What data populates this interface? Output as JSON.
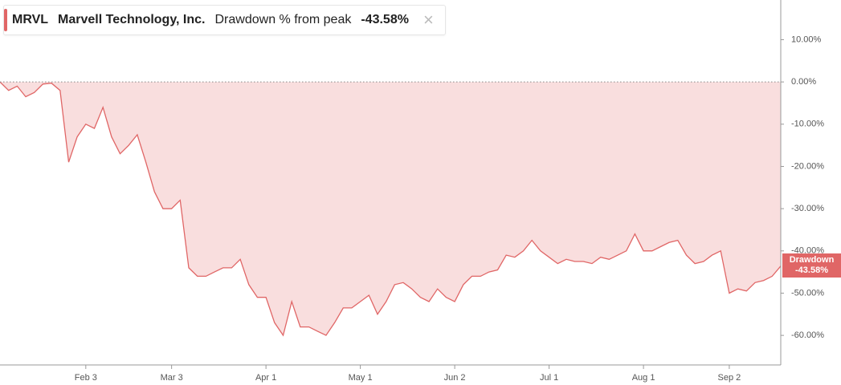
{
  "header": {
    "ticker": "MRVL",
    "company": "Marvell Technology, Inc.",
    "metric": "Drawdown % from peak",
    "current": "-43.58%"
  },
  "chart_data": {
    "type": "area",
    "categories": [
      null,
      null,
      null,
      null,
      null,
      null,
      null,
      null,
      null,
      null,
      "Feb 3",
      null,
      null,
      null,
      null,
      null,
      null,
      null,
      null,
      null,
      "Mar 3",
      null,
      null,
      null,
      null,
      null,
      null,
      null,
      null,
      null,
      null,
      "Apr 1",
      null,
      null,
      null,
      null,
      null,
      null,
      null,
      null,
      null,
      null,
      "May 1",
      null,
      null,
      null,
      null,
      null,
      null,
      null,
      null,
      null,
      null,
      "Jun 2",
      null,
      null,
      null,
      null,
      null,
      null,
      null,
      null,
      null,
      null,
      "Jul 1",
      null,
      null,
      null,
      null,
      null,
      null,
      null,
      null,
      null,
      null,
      "Aug 1",
      null,
      null,
      null,
      null,
      null,
      null,
      null,
      null,
      null,
      "Sep 2",
      null,
      null,
      null,
      null,
      null,
      null
    ],
    "series": [
      {
        "name": "Drawdown",
        "color": "#e06666",
        "fill": "#f9dede",
        "values": [
          0,
          -2,
          -1,
          -3.5,
          -2.5,
          -0.5,
          -0.3,
          -2,
          -19,
          -13,
          -10,
          -11,
          -6,
          -13,
          -17,
          -15,
          -12.5,
          -19,
          -26,
          -30,
          -30,
          -28,
          -44,
          -46,
          -46,
          -45,
          -44,
          -44,
          -42,
          -48,
          -51,
          -51,
          -57,
          -60,
          -52,
          -58,
          -58,
          -59,
          -60,
          -57,
          -53.5,
          -53.5,
          -52,
          -50.5,
          -55,
          -52,
          -48,
          -47.5,
          -49,
          -51,
          -52,
          -49,
          -51,
          -52,
          -48,
          -46,
          -46,
          -45,
          -44.5,
          -41,
          -41.5,
          -40,
          -37.5,
          -40,
          -41.5,
          -43,
          -42,
          -42.5,
          -42.5,
          -43,
          -41.5,
          -42,
          -41,
          -40,
          -36,
          -40,
          -40,
          -39,
          -38,
          -37.5,
          -41,
          -43,
          -42.5,
          -41,
          -40,
          -50,
          -49,
          -49.5,
          -47.5,
          -47,
          -46,
          -43.58
        ],
        "value_labels": [
          null,
          null,
          null,
          null,
          null,
          null,
          null,
          null,
          null,
          null,
          null,
          null,
          null,
          null,
          null,
          null,
          null,
          null,
          null,
          null,
          null,
          null,
          null,
          null,
          null,
          null,
          null,
          null,
          null,
          null,
          null,
          null,
          null,
          null,
          null,
          null,
          null,
          null,
          null,
          null,
          null,
          null,
          null,
          null,
          null,
          null,
          null,
          null,
          null,
          null,
          null,
          null,
          null,
          null,
          null,
          null,
          null,
          null,
          null,
          null,
          null,
          null,
          null,
          null,
          null,
          null,
          null,
          null,
          null,
          null,
          null,
          null,
          null,
          null,
          null,
          null,
          null,
          null,
          null,
          null,
          null,
          null,
          null,
          null,
          null,
          null,
          null,
          null,
          null,
          null,
          null,
          "-43.58%"
        ]
      }
    ],
    "ylim": [
      -67,
      19.4
    ],
    "yticks": [
      {
        "value": 10,
        "label": "10.00%"
      },
      {
        "value": 0,
        "label": "0.00%"
      },
      {
        "value": -10,
        "label": "-10.00%"
      },
      {
        "value": -20,
        "label": "-20.00%"
      },
      {
        "value": -30,
        "label": "-30.00%"
      },
      {
        "value": -40,
        "label": "-40.00%"
      },
      {
        "value": -50,
        "label": "-50.00%"
      },
      {
        "value": -60,
        "label": "-60.00%"
      }
    ],
    "y_axis_side": "right",
    "zero_line": true,
    "grid": false
  }
}
